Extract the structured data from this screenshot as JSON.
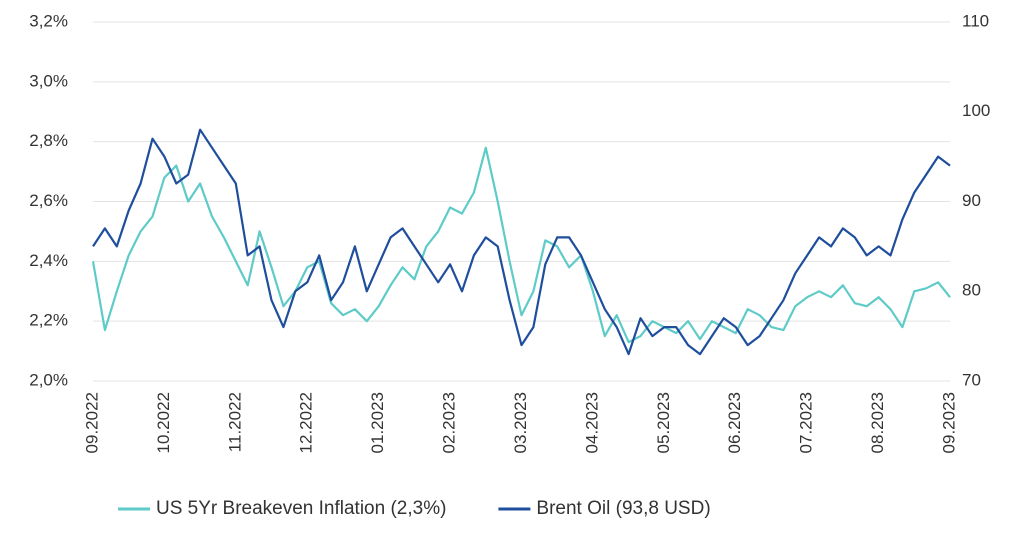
{
  "chart_data": {
    "type": "line",
    "categories": [
      "09.2022",
      null,
      null,
      null,
      null,
      null,
      "10.2022",
      null,
      null,
      null,
      null,
      null,
      "11.2022",
      null,
      null,
      null,
      null,
      null,
      "12.2022",
      null,
      null,
      null,
      null,
      null,
      "01.2023",
      null,
      null,
      null,
      null,
      null,
      "02.2023",
      null,
      null,
      null,
      null,
      null,
      "03.2023",
      null,
      null,
      null,
      null,
      null,
      "04.2023",
      null,
      null,
      null,
      null,
      null,
      "05.2023",
      null,
      null,
      null,
      null,
      null,
      "06.2023",
      null,
      null,
      null,
      null,
      null,
      "07.2023",
      null,
      null,
      null,
      null,
      null,
      "08.2023",
      null,
      null,
      null,
      null,
      null,
      "09.2023"
    ],
    "series": [
      {
        "name": "US 5Yr Breakeven Inflation (2,3%)",
        "color": "#5ecbc8",
        "values": [
          2.4,
          2.17,
          2.3,
          2.42,
          2.5,
          2.55,
          2.68,
          2.72,
          2.6,
          2.66,
          2.55,
          2.48,
          2.4,
          2.32,
          2.5,
          2.38,
          2.25,
          2.3,
          2.38,
          2.4,
          2.26,
          2.22,
          2.24,
          2.2,
          2.25,
          2.32,
          2.38,
          2.34,
          2.45,
          2.5,
          2.58,
          2.56,
          2.63,
          2.78,
          2.6,
          2.4,
          2.22,
          2.3,
          2.47,
          2.45,
          2.38,
          2.42,
          2.3,
          2.15,
          2.22,
          2.13,
          2.15,
          2.2,
          2.18,
          2.16,
          2.2,
          2.14,
          2.2,
          2.18,
          2.16,
          2.24,
          2.22,
          2.18,
          2.17,
          2.25,
          2.28,
          2.3,
          2.28,
          2.32,
          2.26,
          2.25,
          2.28,
          2.24,
          2.18,
          2.3,
          2.31,
          2.33,
          2.28
        ]
      },
      {
        "name": "Brent Oil (93,8 USD)",
        "color": "#1f4e9c",
        "axis": "y2",
        "values": [
          85,
          87,
          85,
          89,
          92,
          97,
          95,
          92,
          93,
          98,
          96,
          94,
          92,
          84,
          85,
          79,
          76,
          80,
          81,
          84,
          79,
          81,
          85,
          80,
          83,
          86,
          87,
          85,
          83,
          81,
          83,
          80,
          84,
          86,
          85,
          79,
          74,
          76,
          83,
          86,
          86,
          84,
          81,
          78,
          76,
          73,
          77,
          75,
          76,
          76,
          74,
          73,
          75,
          77,
          76,
          74,
          75,
          77,
          79,
          82,
          84,
          86,
          85,
          87,
          86,
          84,
          85,
          84,
          88,
          91,
          93,
          95,
          94
        ]
      }
    ],
    "ylim": [
      2.0,
      3.2
    ],
    "yticks": [
      {
        "value": 2.0,
        "label": "2,0%"
      },
      {
        "value": 2.2,
        "label": "2,2%"
      },
      {
        "value": 2.4,
        "label": "2,4%"
      },
      {
        "value": 2.6,
        "label": "2,6%"
      },
      {
        "value": 2.8,
        "label": "2,8%"
      },
      {
        "value": 3.0,
        "label": "3,0%"
      },
      {
        "value": 3.2,
        "label": "3,2%"
      }
    ],
    "y2lim": [
      70,
      110
    ],
    "y2ticks": [
      70,
      80,
      90,
      100,
      110
    ],
    "grid": true,
    "legend": "bottom"
  }
}
